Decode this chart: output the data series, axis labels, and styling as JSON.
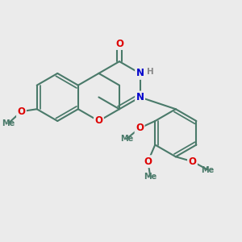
{
  "bg_color": "#ebebeb",
  "bond_color": "#4a7a6a",
  "bond_width": 1.5,
  "atom_colors": {
    "O": "#dd0000",
    "N": "#0000cc",
    "H": "#888888",
    "C": "#4a7a6a"
  },
  "font_size": 8.5,
  "figsize": [
    3.0,
    3.0
  ],
  "dpi": 100,
  "xlim": [
    0,
    10
  ],
  "ylim": [
    0,
    10
  ]
}
